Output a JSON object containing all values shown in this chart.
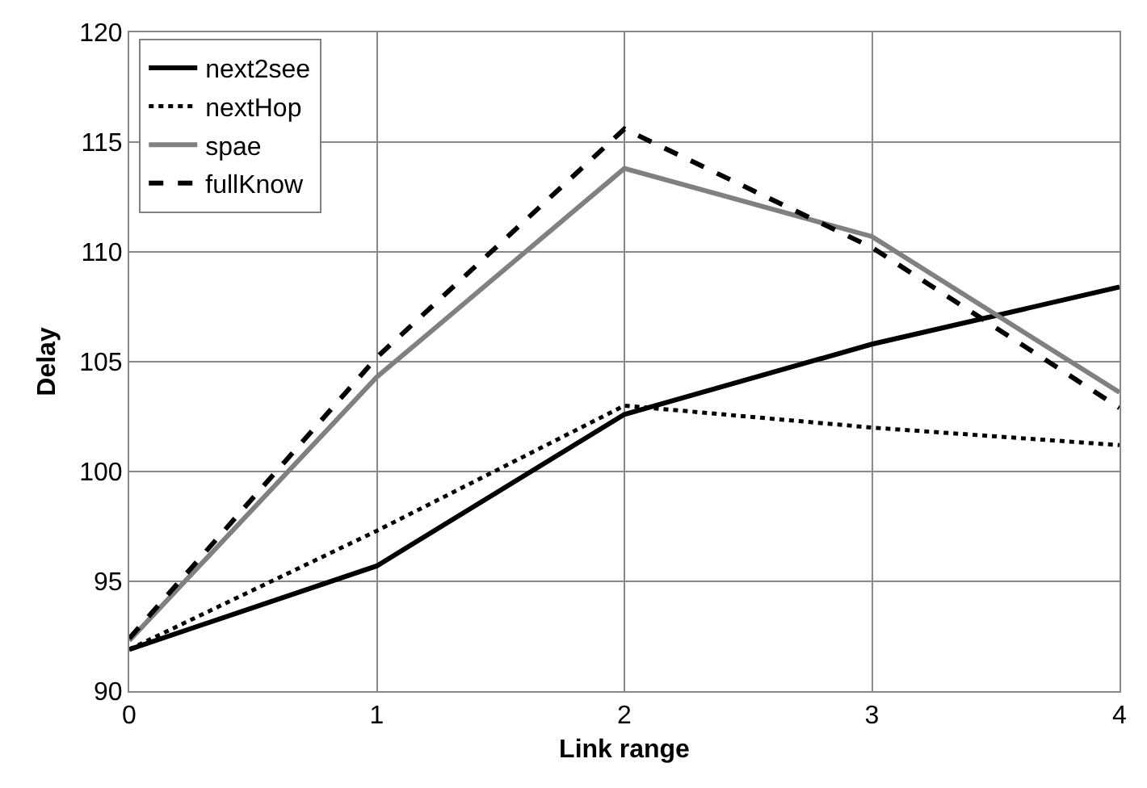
{
  "chart_data": {
    "type": "line",
    "xlabel": "Link range",
    "ylabel": "Delay",
    "x": [
      0,
      1,
      2,
      3,
      4
    ],
    "series": [
      {
        "name": "next2see",
        "color": "#000000",
        "line_style": "solid",
        "values": [
          91.9,
          95.7,
          102.6,
          105.8,
          108.4
        ]
      },
      {
        "name": "nextHop",
        "color": "#000000",
        "line_style": "dotted",
        "values": [
          91.9,
          97.3,
          103.0,
          102.0,
          101.2
        ]
      },
      {
        "name": "spae",
        "color": "#808080",
        "line_style": "solid",
        "values": [
          92.3,
          104.3,
          113.8,
          110.7,
          103.6
        ]
      },
      {
        "name": "fullKnow",
        "color": "#000000",
        "line_style": "dashed",
        "values": [
          92.4,
          105.2,
          115.6,
          110.2,
          102.9
        ]
      }
    ],
    "xlim": [
      0,
      4
    ],
    "xticks": [
      0,
      1,
      2,
      3,
      4
    ],
    "ylim": [
      90,
      120
    ],
    "yticks": [
      90,
      95,
      100,
      105,
      110,
      115,
      120
    ],
    "grid": true,
    "legend": "top left",
    "marker": "none"
  }
}
